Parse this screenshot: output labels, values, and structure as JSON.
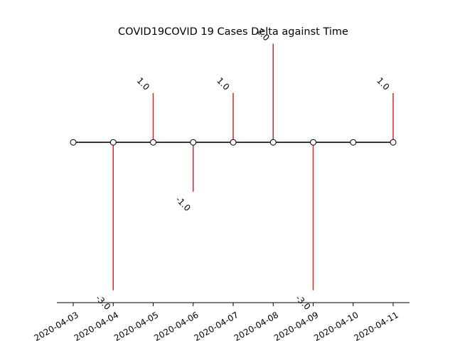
{
  "chart_data": {
    "type": "timeline-stem",
    "title": "COVID19COVID 19 Cases Delta against Time",
    "x": [
      "2020-04-03",
      "2020-04-04",
      "2020-04-05",
      "2020-04-06",
      "2020-04-07",
      "2020-04-08",
      "2020-04-09",
      "2020-04-10",
      "2020-04-11"
    ],
    "values": [
      0,
      -3.0,
      1.0,
      -1.0,
      1.0,
      2.0,
      -3.0,
      0,
      1.0
    ],
    "data_labels": [
      "",
      "-3.0",
      "1.0",
      "-1.0",
      "1.0",
      "2.0",
      "-3.0",
      "",
      "1.0"
    ],
    "ylim": [
      -3.25,
      2.05
    ],
    "grid": false,
    "colors": {
      "stem": "#d62728",
      "baseline": "#000000",
      "marker_face": "#ffffff",
      "marker_edge": "#000000"
    }
  }
}
